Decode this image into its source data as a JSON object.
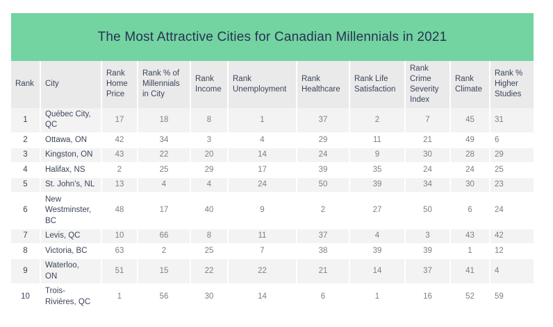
{
  "title": "The Most Attractive Cities for Canadian Millennials in 2021",
  "colors": {
    "band_green": "#73d3a1",
    "title_navy": "#263452",
    "header_gray": "#eaeaeb",
    "stripe_gray": "#f3f3f4",
    "dark_text": "#3b4459",
    "value_text": "#7d7e88"
  },
  "chart_data": {
    "type": "table",
    "title": "The Most Attractive Cities for Canadian Millennials in 2021",
    "columns": [
      "Rank",
      "City",
      "Rank Home Price",
      "Rank % of Millennials in City",
      "Rank Income",
      "Rank Unemployment",
      "Rank Healthcare",
      "Rank Life Satisfaction",
      "Rank Crime Severity Index",
      "Rank Climate",
      "Rank % Higher Studies"
    ],
    "rows": [
      [
        "1",
        "Québec City,\nQC",
        "17",
        "18",
        "8",
        "1",
        "37",
        "2",
        "7",
        "45",
        "31"
      ],
      [
        "2",
        "Ottawa, ON",
        "42",
        "34",
        "3",
        "4",
        "29",
        "11",
        "21",
        "49",
        "6"
      ],
      [
        "3",
        "Kingston, ON",
        "43",
        "22",
        "20",
        "14",
        "24",
        "9",
        "30",
        "28",
        "29"
      ],
      [
        "4",
        "Halifax, NS",
        "2",
        "25",
        "29",
        "17",
        "39",
        "35",
        "24",
        "24",
        "25"
      ],
      [
        "5",
        "St. John's, NL",
        "13",
        "4",
        "4",
        "24",
        "50",
        "39",
        "34",
        "30",
        "23"
      ],
      [
        "6",
        "New\nWestminster,\nBC",
        "48",
        "17",
        "40",
        "9",
        "2",
        "27",
        "50",
        "6",
        "24"
      ],
      [
        "7",
        "Levis, QC",
        "10",
        "66",
        "8",
        "11",
        "37",
        "4",
        "3",
        "43",
        "42"
      ],
      [
        "8",
        "Victoria, BC",
        "63",
        "2",
        "25",
        "7",
        "38",
        "39",
        "39",
        "1",
        "12"
      ],
      [
        "9",
        "Waterloo,\nON",
        "51",
        "15",
        "22",
        "22",
        "21",
        "14",
        "37",
        "41",
        "4"
      ],
      [
        "10",
        "Trois-\nRivières, QC",
        "1",
        "56",
        "30",
        "14",
        "6",
        "1",
        "16",
        "52",
        "59"
      ]
    ]
  }
}
